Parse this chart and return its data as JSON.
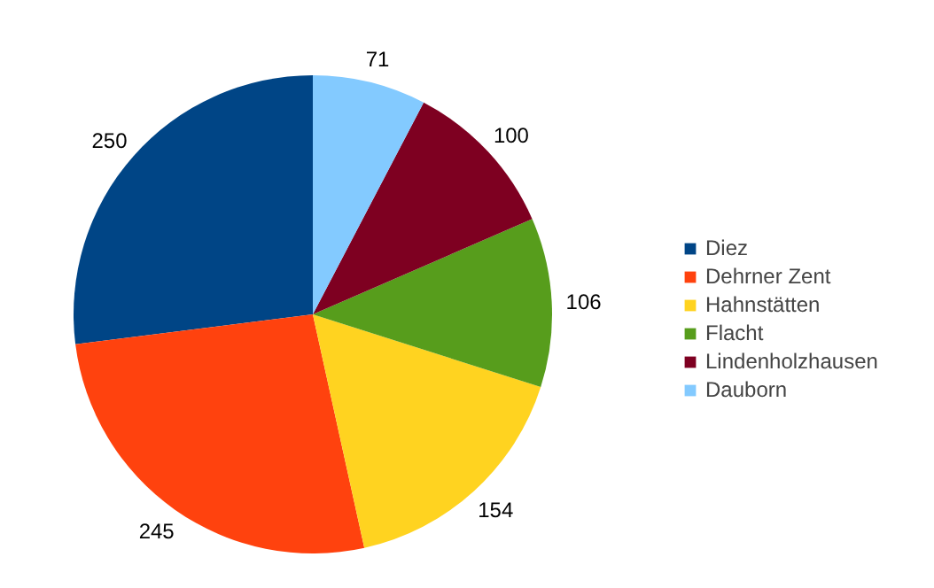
{
  "chart_data": {
    "type": "pie",
    "categories": [
      "Diez",
      "Dehrner Zent",
      "Hahnstätten",
      "Flacht",
      "Lindenholzhausen",
      "Dauborn"
    ],
    "values": [
      250,
      245,
      154,
      106,
      100,
      71
    ],
    "colors": [
      "#004586",
      "#ff420e",
      "#ffd320",
      "#579d1c",
      "#7e0021",
      "#83caff"
    ],
    "data_labels": true,
    "legend": "right"
  }
}
